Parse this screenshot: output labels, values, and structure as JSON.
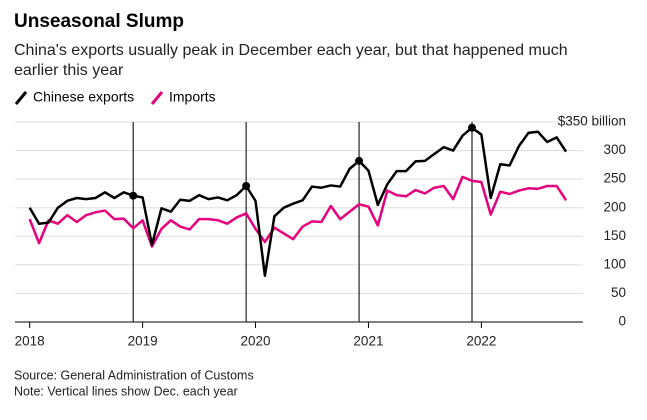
{
  "chart_data": {
    "type": "line",
    "title": "Unseasonal Slump",
    "subtitle": [
      "China's exports usually peak in December each year, but that happened much",
      "earlier this year"
    ],
    "source": "Source: General Administration of Customs",
    "note": "Note: Vertical lines show Dec. each year",
    "x": [
      2018,
      2018.083,
      2018.167,
      2018.25,
      2018.333,
      2018.417,
      2018.5,
      2018.583,
      2018.667,
      2018.75,
      2018.833,
      2018.917,
      2019,
      2019.083,
      2019.167,
      2019.25,
      2019.333,
      2019.417,
      2019.5,
      2019.583,
      2019.667,
      2019.75,
      2019.833,
      2019.917,
      2020,
      2020.083,
      2020.167,
      2020.25,
      2020.333,
      2020.417,
      2020.5,
      2020.583,
      2020.667,
      2020.75,
      2020.833,
      2020.917,
      2021,
      2021.083,
      2021.167,
      2021.25,
      2021.333,
      2021.417,
      2021.5,
      2021.583,
      2021.667,
      2021.75,
      2021.833,
      2021.917,
      2022,
      2022.083,
      2022.167,
      2022.25,
      2022.333,
      2022.417,
      2022.5,
      2022.583,
      2022.667,
      2022.75
    ],
    "series": [
      {
        "name": "Chinese exports",
        "color": "#000000",
        "values": [
          200,
          172,
          174,
          200,
          212,
          217,
          215,
          217,
          227,
          217,
          227,
          221,
          218,
          135,
          199,
          193,
          214,
          212,
          222,
          215,
          218,
          213,
          222,
          238,
          212,
          81,
          185,
          200,
          207,
          213,
          237,
          235,
          239,
          237,
          268,
          282,
          265,
          205,
          241,
          264,
          264,
          281,
          282,
          294,
          306,
          300,
          326,
          340,
          328,
          217,
          276,
          274,
          308,
          331,
          333,
          315,
          323,
          298
        ]
      },
      {
        "name": "Imports",
        "color": "#e6007e",
        "values": [
          180,
          138,
          178,
          172,
          187,
          175,
          187,
          192,
          195,
          180,
          181,
          164,
          178,
          132,
          163,
          178,
          167,
          162,
          180,
          180,
          178,
          172,
          183,
          190,
          163,
          140,
          165,
          155,
          145,
          167,
          176,
          175,
          203,
          180,
          193,
          206,
          202,
          169,
          230,
          222,
          220,
          231,
          225,
          235,
          238,
          215,
          254,
          247,
          245,
          188,
          228,
          224,
          230,
          234,
          233,
          238,
          238,
          213
        ]
      }
    ],
    "highlight_x": [
      2018.917,
      2019.917,
      2020.917,
      2021.917
    ],
    "xlim": [
      2017.87,
      2022.9
    ],
    "xticks": [
      2018,
      2019,
      2020,
      2021,
      2022
    ],
    "ylim": [
      0,
      350
    ],
    "yticks": [
      0,
      50,
      100,
      150,
      200,
      250,
      300,
      {
        "value": 350,
        "label": "$350 billion"
      }
    ],
    "grid": true
  }
}
